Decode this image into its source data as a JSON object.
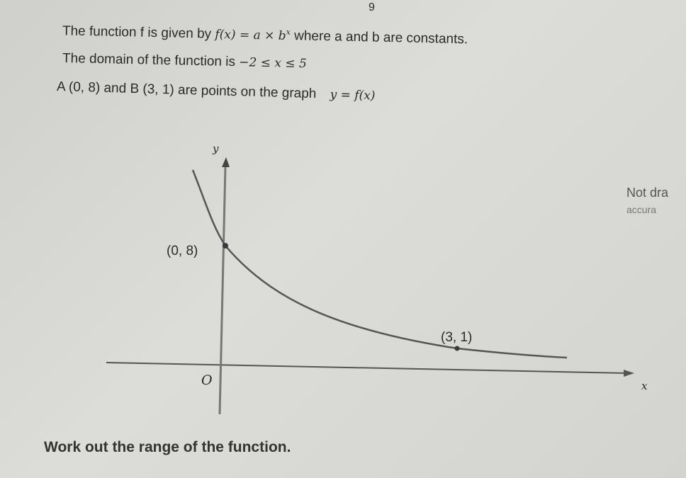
{
  "question": {
    "number": "9",
    "line1": {
      "text": "The function f is given by",
      "formula": "f(x) = a × b",
      "exponent": "x",
      "rest": "where a and b are constants."
    },
    "line2": {
      "text": "The domain of the function is",
      "formula": "−2 ≤ x ≤ 5"
    },
    "line3": {
      "text": "A (0, 8) and B (3, 1) are points on the graph",
      "formula": "y = f(x)"
    },
    "graph": {
      "y_label": "y",
      "x_label": "x",
      "origin_label": "O",
      "point_a_label": "(0, 8)",
      "point_b_label": "(3, 1)"
    },
    "note": [
      "Not dra",
      "accura"
    ],
    "task": "Work out the range of the function."
  }
}
